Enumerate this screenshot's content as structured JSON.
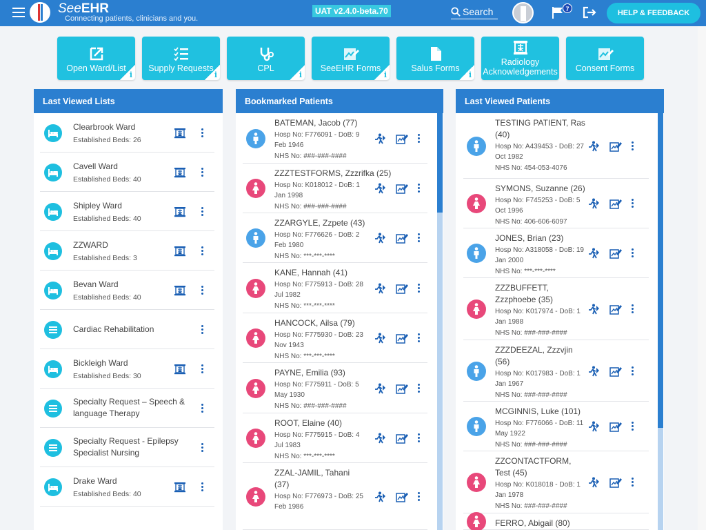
{
  "header": {
    "brand_prefix": "See",
    "brand_suffix": "EHR",
    "tagline": "Connecting patients, clinicians and you.",
    "version": "UAT v2.4.0-beta.70",
    "search_label": "Search",
    "notification_count": "7",
    "help_label": "HELP & FEEDBACK"
  },
  "tiles": [
    {
      "label": "Open Ward/List",
      "icon": "open-external-icon",
      "info": "i"
    },
    {
      "label": "Supply Requests",
      "icon": "checklist-icon",
      "info": "i"
    },
    {
      "label": "CPL",
      "icon": "stethoscope-icon",
      "info": "i"
    },
    {
      "label": "SeeEHR Forms",
      "icon": "chart-edit-icon",
      "info": "i"
    },
    {
      "label": "Salus Forms",
      "icon": "document-icon",
      "info": "i"
    },
    {
      "label_line1": "Radiology",
      "label_line2": "Acknowledgements",
      "icon": "radiology-icon"
    },
    {
      "label": "Consent Forms",
      "icon": "chart-edit-icon"
    }
  ],
  "last_viewed_lists": {
    "title": "Last Viewed Lists",
    "items": [
      {
        "name": "Clearbrook Ward",
        "sub": "Established Beds: 26"
      },
      {
        "name": "Cavell Ward",
        "sub": "Established Beds: 40"
      },
      {
        "name": "Shipley Ward",
        "sub": "Established Beds: 40"
      },
      {
        "name": "ZZWARD",
        "sub": "Established Beds: 3"
      },
      {
        "name": "Bevan Ward",
        "sub": "Established Beds: 40"
      },
      {
        "name": "Cardiac Rehabilitation"
      },
      {
        "name": "Bickleigh Ward",
        "sub": "Established Beds: 30"
      },
      {
        "name1": "Specialty Request – Speech &",
        "name2": "language Therapy"
      },
      {
        "name1": "Specialty Request - Epilepsy",
        "name2": "Specialist Nursing"
      },
      {
        "name": "Drake Ward",
        "sub": "Established Beds: 40"
      }
    ]
  },
  "bookmarked_patients": {
    "title": "Bookmarked Patients",
    "items": [
      {
        "name": "BATEMAN, Jacob (77)",
        "hosp": "Hosp No: F776091 - DoB: 9 Feb 1946",
        "nhs": "NHS No: ###-###-####",
        "sex": "m"
      },
      {
        "name": "ZZZTESTFORMS, Zzzrifka (25)",
        "hosp": "Hosp No: K018012 - DoB: 1 Jan 1998",
        "nhs": "NHS No: ###-###-####",
        "sex": "f"
      },
      {
        "name": "ZZARGYLE, Zzpete (43)",
        "hosp": "Hosp No: F776626 - DoB: 2 Feb 1980",
        "nhs": "NHS No: ***-***-****",
        "sex": "m"
      },
      {
        "name": "KANE, Hannah (41)",
        "hosp": "Hosp No: F775913 - DoB: 28 Jul 1982",
        "nhs": "NHS No: ***-***-****",
        "sex": "f"
      },
      {
        "name": "HANCOCK, Ailsa (79)",
        "hosp": "Hosp No: F775930 - DoB: 23 Nov 1943",
        "nhs": "NHS No: ***-***-****",
        "sex": "f"
      },
      {
        "name": "PAYNE, Emilia (93)",
        "hosp": "Hosp No: F775911 - DoB: 5 May 1930",
        "nhs": "NHS No: ###-###-####",
        "sex": "f"
      },
      {
        "name": "ROOT, Elaine (40)",
        "hosp": "Hosp No: F775915 - DoB: 4 Jul 1983",
        "nhs": "NHS No: ***-***-****",
        "sex": "f"
      },
      {
        "name1": "ZZAL-JAMIL, Tahani",
        "name2": "(37)",
        "hosp": "Hosp No: F776973 - DoB: 25 Feb 1986",
        "sex": "f"
      }
    ]
  },
  "last_viewed_patients": {
    "title": "Last Viewed Patients",
    "items": [
      {
        "name1": "TESTING PATIENT, Ras",
        "name2": "(40)",
        "hosp": "Hosp No: A439453 - DoB: 27 Oct 1982",
        "nhs": "NHS No: 454-053-4076",
        "sex": "m"
      },
      {
        "name": "SYMONS, Suzanne (26)",
        "hosp": "Hosp No: F745253 - DoB: 5 Oct 1996",
        "nhs": "NHS No: 406-606-6097",
        "sex": "f"
      },
      {
        "name": "JONES, Brian (23)",
        "hosp": "Hosp No: A318058 - DoB: 19 Jan 2000",
        "nhs": "NHS No: ***-***-****",
        "sex": "m"
      },
      {
        "name1": "ZZZBUFFETT,",
        "name2": "Zzzphoebe (35)",
        "hosp": "Hosp No: K017974 - DoB: 1 Jan 1988",
        "nhs": "NHS No: ###-###-####",
        "sex": "f"
      },
      {
        "name1": "ZZZDEEZAL, Zzzvjin",
        "name2": "(56)",
        "hosp": "Hosp No: K017983 - DoB: 1 Jan 1967",
        "nhs": "NHS No: ###-###-####",
        "sex": "m"
      },
      {
        "name": "MCGINNIS, Luke (101)",
        "hosp": "Hosp No: F776066 - DoB: 11 May 1922",
        "nhs": "NHS No: ###-###-####",
        "sex": "m"
      },
      {
        "name1": "ZZCONTACTFORM,",
        "name2": "Test (45)",
        "hosp": "Hosp No: K018018 - DoB: 1 Jan 1978",
        "nhs": "NHS No: ###-###-####",
        "sex": "f"
      },
      {
        "name": "FERRO, Abigail (80)",
        "sex": "f"
      }
    ]
  }
}
